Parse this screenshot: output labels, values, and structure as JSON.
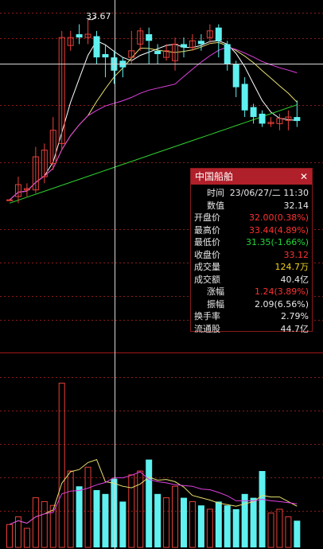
{
  "chart_data": {
    "type": "candlestick",
    "high_label": "33.67",
    "price_range": [
      30.7,
      33.75
    ],
    "candles": [
      {
        "o": 30.95,
        "c": 30.95,
        "h": 30.95,
        "l": 30.95
      },
      {
        "o": 31.0,
        "c": 31.18,
        "h": 31.3,
        "l": 30.9
      },
      {
        "o": 31.1,
        "c": 31.12,
        "h": 31.2,
        "l": 31.0
      },
      {
        "o": 31.1,
        "c": 31.6,
        "h": 31.75,
        "l": 31.05
      },
      {
        "o": 31.3,
        "c": 31.7,
        "h": 31.8,
        "l": 31.2
      },
      {
        "o": 31.5,
        "c": 32.0,
        "h": 32.2,
        "l": 31.4
      },
      {
        "o": 31.8,
        "c": 33.4,
        "h": 33.5,
        "l": 31.7
      },
      {
        "o": 33.28,
        "c": 33.4,
        "h": 33.5,
        "l": 33.2
      },
      {
        "o": 33.45,
        "c": 33.4,
        "h": 33.6,
        "l": 33.3
      },
      {
        "o": 33.4,
        "c": 33.45,
        "h": 33.67,
        "l": 33.3
      },
      {
        "o": 33.42,
        "c": 33.1,
        "h": 33.5,
        "l": 33.0
      },
      {
        "o": 33.15,
        "c": 33.1,
        "h": 33.3,
        "l": 32.8
      },
      {
        "o": 33.1,
        "c": 32.9,
        "h": 33.2,
        "l": 32.7
      },
      {
        "o": 33.05,
        "c": 32.95,
        "h": 33.1,
        "l": 32.8
      },
      {
        "o": 33.1,
        "c": 33.2,
        "h": 33.5,
        "l": 33.0
      },
      {
        "o": 33.3,
        "c": 33.5,
        "h": 33.55,
        "l": 33.2
      },
      {
        "o": 33.45,
        "c": 33.35,
        "h": 33.55,
        "l": 33.0
      },
      {
        "o": 33.2,
        "c": 33.15,
        "h": 33.3,
        "l": 33.0
      },
      {
        "o": 33.1,
        "c": 33.2,
        "h": 33.3,
        "l": 33.05
      },
      {
        "o": 33.05,
        "c": 33.3,
        "h": 33.4,
        "l": 32.9
      },
      {
        "o": 33.3,
        "c": 33.25,
        "h": 33.4,
        "l": 33.1
      },
      {
        "o": 33.25,
        "c": 33.35,
        "h": 33.45,
        "l": 33.2
      },
      {
        "o": 33.35,
        "c": 33.3,
        "h": 33.45,
        "l": 33.2
      },
      {
        "o": 33.4,
        "c": 33.5,
        "h": 33.6,
        "l": 33.3
      },
      {
        "o": 33.55,
        "c": 33.35,
        "h": 33.6,
        "l": 33.1
      },
      {
        "o": 33.3,
        "c": 33.0,
        "h": 33.35,
        "l": 32.9
      },
      {
        "o": 33.0,
        "c": 32.65,
        "h": 33.05,
        "l": 32.5
      },
      {
        "o": 32.7,
        "c": 32.3,
        "h": 32.8,
        "l": 32.2
      },
      {
        "o": 32.35,
        "c": 32.2,
        "h": 32.4,
        "l": 32.1
      },
      {
        "o": 32.25,
        "c": 32.1,
        "h": 32.3,
        "l": 32.05
      },
      {
        "o": 32.1,
        "c": 32.12,
        "h": 32.2,
        "l": 32.05
      },
      {
        "o": 32.1,
        "c": 32.18,
        "h": 32.25,
        "l": 32.0
      },
      {
        "o": 32.15,
        "c": 32.2,
        "h": 32.3,
        "l": 32.0
      },
      {
        "o": 32.2,
        "c": 32.14,
        "h": 32.45,
        "l": 32.05
      }
    ],
    "volume": [
      0.6,
      0.8,
      0.5,
      1.3,
      1.2,
      1.1,
      4.3,
      2.0,
      1.6,
      2.1,
      1.5,
      1.4,
      1.8,
      1.2,
      1.9,
      2.0,
      2.3,
      1.4,
      1.3,
      1.6,
      1.3,
      1.2,
      1.1,
      1.0,
      1.2,
      1.1,
      1.0,
      1.4,
      1.3,
      2.0,
      0.9,
      1.0,
      0.8,
      0.7
    ],
    "vol_range": [
      0,
      4.5
    ]
  },
  "tooltip": {
    "title": "中国船舶",
    "close_glyph": "✕",
    "rows": [
      {
        "label": "时间",
        "value": "23/06/27/二 11:30",
        "indent": true,
        "cls": ""
      },
      {
        "label": "数值",
        "value": "32.14",
        "indent": true,
        "cls": ""
      },
      {
        "label": "开盘价",
        "value": "32.00(0.38%)",
        "indent": false,
        "cls": "up"
      },
      {
        "label": "最高价",
        "value": "33.44(4.89%)",
        "indent": false,
        "cls": "up"
      },
      {
        "label": "最低价",
        "value": "31.35(-1.66%)",
        "indent": false,
        "cls": "dn"
      },
      {
        "label": "收盘价",
        "value": "33.12",
        "indent": false,
        "cls": "up"
      },
      {
        "label": "成交量",
        "value": "124.7万",
        "indent": false,
        "cls": "yl"
      },
      {
        "label": "成交额",
        "value": "40.4亿",
        "indent": false,
        "cls": ""
      },
      {
        "label": "涨幅",
        "value": "1.24(3.89%)",
        "indent": true,
        "cls": "up"
      },
      {
        "label": "振幅",
        "value": "2.09(6.56%)",
        "indent": true,
        "cls": ""
      },
      {
        "label": "换手率",
        "value": "2.79%",
        "indent": false,
        "cls": ""
      },
      {
        "label": "流通股",
        "value": "44.7亿",
        "indent": false,
        "cls": ""
      }
    ]
  },
  "colors": {
    "up": "#e8403a",
    "down": "#5ff0f0",
    "ma_white": "#ffffff",
    "ma_yellow": "#e8e070",
    "ma_magenta": "#e040e0",
    "ma_green": "#30d030",
    "grid": "#8a1a1a"
  }
}
